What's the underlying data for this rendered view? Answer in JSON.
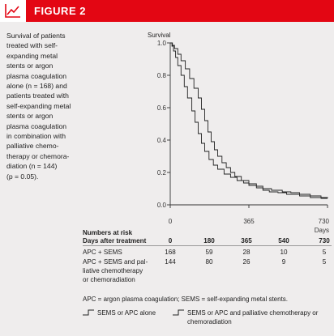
{
  "header": {
    "title": "FIGURE 2",
    "icon": "chart-line-icon",
    "accent": "#e30613"
  },
  "caption_lines": [
    "Survival of patients",
    "treated with self-",
    "expanding metal",
    "stents or argon",
    "plasma coagulation",
    "alone (n = 168) and",
    "patients treated with",
    "self-expanding metal",
    "stents or argon",
    "plasma coagulation",
    "in combination with",
    "palliative chemo-",
    "therapy or chemora-",
    "diation (n = 144)",
    "(p = 0.05)."
  ],
  "chart_data": {
    "type": "line",
    "ylabel": "Survival",
    "xunit": "Days",
    "xlim": [
      0,
      730
    ],
    "ylim": [
      0,
      1.0
    ],
    "x_ticks": [
      0,
      365,
      730
    ],
    "x_tick_labels": [
      "0",
      "365",
      "730"
    ],
    "y_ticks": [
      0,
      0.2,
      0.4,
      0.6,
      0.8,
      1.0
    ],
    "y_tick_labels": [
      "0.0",
      "0.2",
      "0.4",
      "0.6",
      "0.8",
      "1.0"
    ],
    "series": [
      {
        "name": "SEMS or APC alone",
        "points": [
          [
            0,
            1.0
          ],
          [
            8,
            0.98
          ],
          [
            15,
            0.95
          ],
          [
            25,
            0.91
          ],
          [
            35,
            0.86
          ],
          [
            50,
            0.8
          ],
          [
            65,
            0.73
          ],
          [
            80,
            0.66
          ],
          [
            100,
            0.58
          ],
          [
            115,
            0.51
          ],
          [
            130,
            0.44
          ],
          [
            145,
            0.38
          ],
          [
            160,
            0.33
          ],
          [
            180,
            0.28
          ],
          [
            200,
            0.245
          ],
          [
            220,
            0.22
          ],
          [
            250,
            0.19
          ],
          [
            280,
            0.17
          ],
          [
            310,
            0.15
          ],
          [
            340,
            0.135
          ],
          [
            365,
            0.12
          ],
          [
            400,
            0.105
          ],
          [
            430,
            0.09
          ],
          [
            460,
            0.08
          ],
          [
            500,
            0.075
          ],
          [
            540,
            0.065
          ],
          [
            600,
            0.055
          ],
          [
            650,
            0.045
          ],
          [
            700,
            0.04
          ],
          [
            730,
            0.04
          ]
        ]
      },
      {
        "name": "SEMS or APC and palliative chemotherapy or chemoradiation",
        "points": [
          [
            0,
            1.0
          ],
          [
            10,
            0.985
          ],
          [
            20,
            0.965
          ],
          [
            35,
            0.93
          ],
          [
            50,
            0.89
          ],
          [
            70,
            0.84
          ],
          [
            90,
            0.78
          ],
          [
            110,
            0.72
          ],
          [
            130,
            0.66
          ],
          [
            145,
            0.59
          ],
          [
            160,
            0.52
          ],
          [
            175,
            0.45
          ],
          [
            190,
            0.39
          ],
          [
            205,
            0.34
          ],
          [
            220,
            0.3
          ],
          [
            240,
            0.26
          ],
          [
            260,
            0.23
          ],
          [
            280,
            0.2
          ],
          [
            300,
            0.175
          ],
          [
            330,
            0.15
          ],
          [
            365,
            0.13
          ],
          [
            400,
            0.115
          ],
          [
            430,
            0.1
          ],
          [
            470,
            0.09
          ],
          [
            520,
            0.08
          ],
          [
            560,
            0.075
          ],
          [
            600,
            0.065
          ],
          [
            650,
            0.055
          ],
          [
            700,
            0.045
          ],
          [
            730,
            0.04
          ]
        ]
      }
    ]
  },
  "risk_table": {
    "title": "Numbers at risk",
    "header": [
      "Days after treatment",
      "0",
      "180",
      "365",
      "540",
      "730"
    ],
    "rows": [
      {
        "label_lines": [
          "APC + SEMS"
        ],
        "values": [
          "168",
          "59",
          "28",
          "10",
          "5"
        ]
      },
      {
        "label_lines": [
          "APC + SEMS and pal-",
          "liative chemotherapy",
          "or chemoradiation"
        ],
        "values": [
          "144",
          "80",
          "26",
          "9",
          "5"
        ]
      }
    ]
  },
  "abbreviations": "APC = argon plasma coagulation; SEMS = self-expanding metal stents.",
  "legend": [
    {
      "label_lines": [
        "SEMS or APC alone"
      ],
      "icon": "step-line-icon"
    },
    {
      "label_lines": [
        "SEMS or APC and palliative chemotherapy or",
        "chemoradiation"
      ],
      "icon": "step-line-icon"
    }
  ]
}
